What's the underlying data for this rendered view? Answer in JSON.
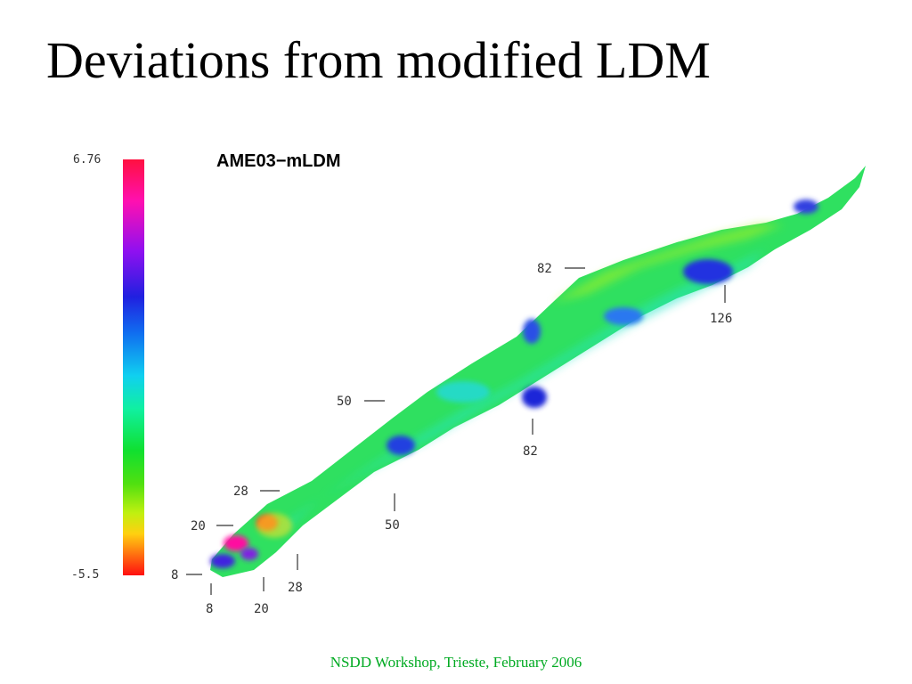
{
  "slide": {
    "title": "Deviations from modified LDM",
    "footer": "NSDD Workshop, Trieste, February 2006"
  },
  "chart_data": {
    "type": "heatmap",
    "title": "AME03−mLDM",
    "colorbar": {
      "max_label": "6.76",
      "min_label": "-5.5",
      "max": 6.76,
      "min": -5.5
    },
    "annotations": [
      "8",
      "8",
      "20",
      "20",
      "28",
      "28",
      "50",
      "50",
      "82",
      "82",
      "126"
    ],
    "colors": {
      "red": "#ff1010",
      "magenta": "#ff10b0",
      "purple": "#9010f0",
      "blue": "#2020e0",
      "cyan": "#10d0f0",
      "green": "#10e030",
      "yellow": "#c0f010",
      "orange": "#ff7010"
    }
  }
}
